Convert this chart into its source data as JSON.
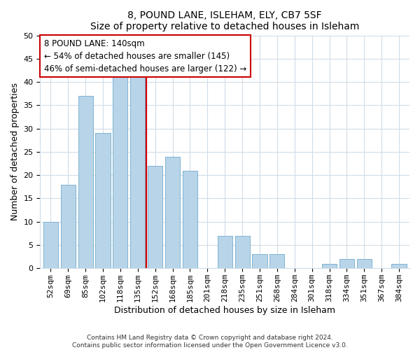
{
  "title1": "8, POUND LANE, ISLEHAM, ELY, CB7 5SF",
  "title2": "Size of property relative to detached houses in Isleham",
  "xlabel": "Distribution of detached houses by size in Isleham",
  "ylabel": "Number of detached properties",
  "footer1": "Contains HM Land Registry data © Crown copyright and database right 2024.",
  "footer2": "Contains public sector information licensed under the Open Government Licence v3.0.",
  "bar_labels": [
    "52sqm",
    "69sqm",
    "85sqm",
    "102sqm",
    "118sqm",
    "135sqm",
    "152sqm",
    "168sqm",
    "185sqm",
    "201sqm",
    "218sqm",
    "235sqm",
    "251sqm",
    "268sqm",
    "284sqm",
    "301sqm",
    "318sqm",
    "334sqm",
    "351sqm",
    "367sqm",
    "384sqm"
  ],
  "bar_values": [
    10,
    18,
    37,
    29,
    41,
    41,
    22,
    24,
    21,
    0,
    7,
    7,
    3,
    3,
    0,
    0,
    1,
    2,
    2,
    0,
    1
  ],
  "bar_color": "#b8d4e8",
  "bar_edge_color": "#7fb3d3",
  "ylim": [
    0,
    50
  ],
  "yticks": [
    0,
    5,
    10,
    15,
    20,
    25,
    30,
    35,
    40,
    45,
    50
  ],
  "vline_x": 6.0,
  "vline_color": "#cc0000",
  "annotation_line1": "8 POUND LANE: 140sqm",
  "annotation_line2": "← 54% of detached houses are smaller (145)",
  "annotation_line3": "46% of semi-detached houses are larger (122) →",
  "annotation_box_edge": "#cc0000",
  "background_color": "#ffffff",
  "grid_color": "#d0dce8",
  "title1_fontsize": 11,
  "title2_fontsize": 10
}
